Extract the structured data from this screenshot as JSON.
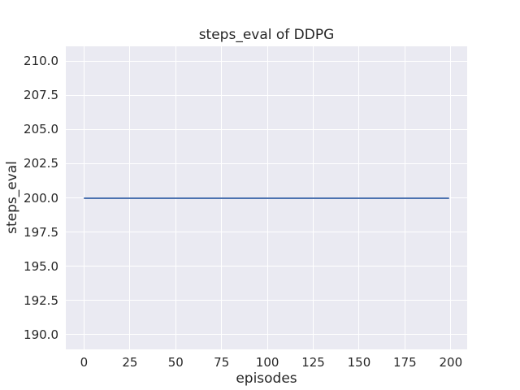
{
  "chart_data": {
    "type": "line",
    "title": "steps_eval of DDPG",
    "xlabel": "episodes",
    "ylabel": "steps_eval",
    "x_ticks": [
      0,
      25,
      50,
      75,
      100,
      125,
      150,
      175,
      200
    ],
    "x_tick_labels": [
      "0",
      "25",
      "50",
      "75",
      "100",
      "125",
      "150",
      "175",
      "200"
    ],
    "y_ticks": [
      190.0,
      192.5,
      195.0,
      197.5,
      200.0,
      202.5,
      205.0,
      207.5,
      210.0
    ],
    "y_tick_labels": [
      "190.0",
      "192.5",
      "195.0",
      "197.5",
      "200.0",
      "202.5",
      "205.0",
      "207.5",
      "210.0"
    ],
    "xlim": [
      -9.95,
      208.95
    ],
    "ylim": [
      188.9,
      211.1
    ],
    "grid": true,
    "legend_visible": false,
    "series": [
      {
        "name": "DDPG",
        "x_start": 0,
        "x_end": 199,
        "y_value": 200.0,
        "description": "constant horizontal line at steps_eval = 200 for episodes 0 through 199"
      }
    ]
  },
  "colors": {
    "figure_bg": "#ffffff",
    "plot_bg": "#eaeaf2",
    "grid": "#ffffff",
    "text": "#262626",
    "line": "#4c72b0"
  }
}
